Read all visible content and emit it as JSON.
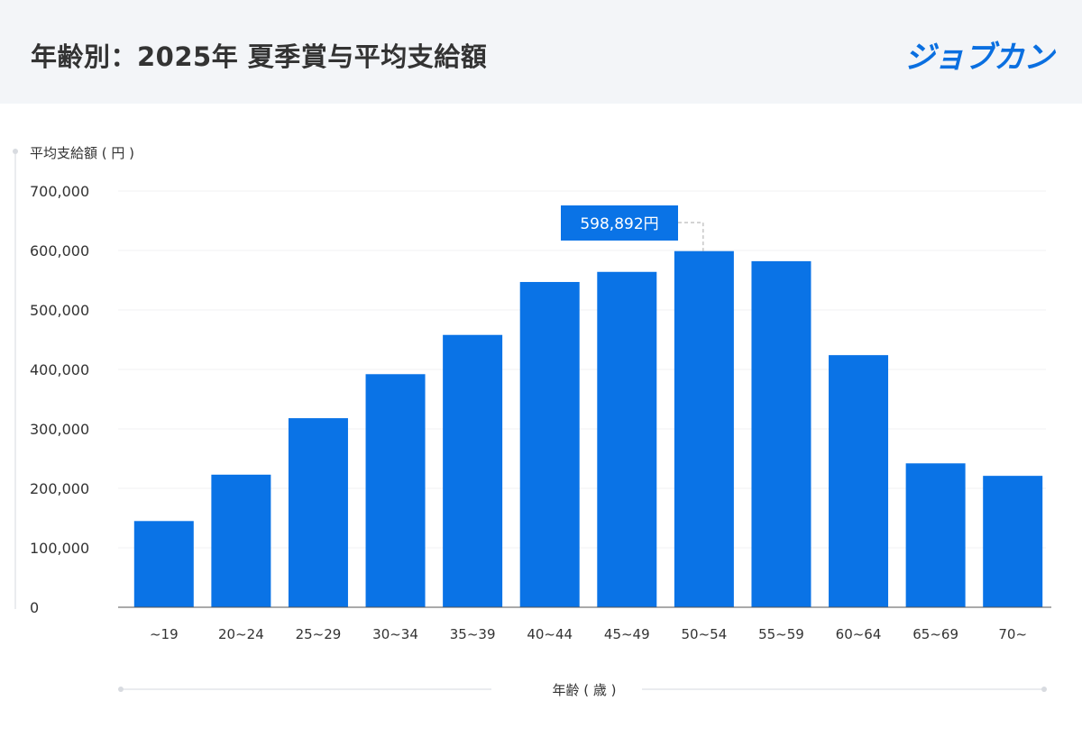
{
  "header": {
    "title": "年齢別：2025年 夏季賞与平均支給額",
    "logo": "ジョブカン"
  },
  "colors": {
    "bar": "#0a73e6",
    "header_bg": "#f3f5f8"
  },
  "chart_data": {
    "type": "bar",
    "title": "年齢別：2025年 夏季賞与平均支給額",
    "xlabel": "年齢 ( 歳 )",
    "ylabel": "平均支給額 ( 円 )",
    "ylim": [
      0,
      700000
    ],
    "yticks": [
      "0",
      "100,000",
      "200,000",
      "300,000",
      "400,000",
      "500,000",
      "600,000",
      "700,000"
    ],
    "categories": [
      "~19",
      "20~24",
      "25~29",
      "30~34",
      "35~39",
      "40~44",
      "45~49",
      "50~54",
      "55~59",
      "60~64",
      "65~69",
      "70~"
    ],
    "values": [
      145000,
      223000,
      318000,
      392000,
      458000,
      547000,
      564000,
      598892,
      582000,
      424000,
      242000,
      221000
    ],
    "annotation": {
      "category": "50~54",
      "label": "598,892円"
    },
    "grid": true
  }
}
